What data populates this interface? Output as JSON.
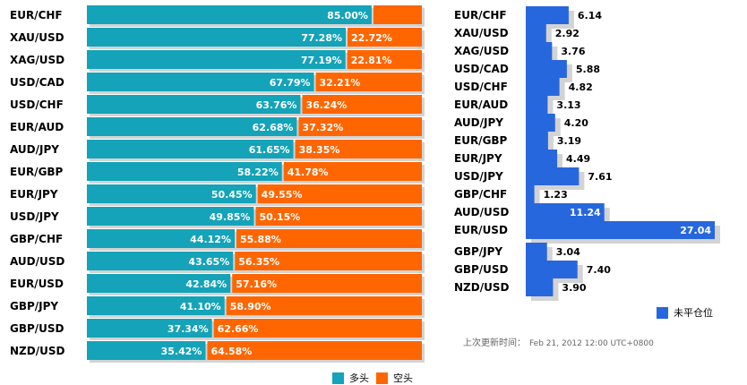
{
  "colors": {
    "long": "#14a3b8",
    "short": "#ff6600",
    "position": "#2767de",
    "shadow": "#d3d3d3"
  },
  "legend": {
    "long_label": "多头",
    "short_label": "空头",
    "position_label": "未平仓位"
  },
  "update": {
    "label": "上次更新时间：",
    "timestamp": "Feb 21, 2012 12:00 UTC+0800"
  },
  "chart_data": [
    {
      "type": "bar",
      "orientation": "horizontal",
      "stacked": true,
      "title": "",
      "categories": [
        "EUR/CHF",
        "XAU/USD",
        "XAG/USD",
        "USD/CAD",
        "USD/CHF",
        "EUR/AUD",
        "AUD/JPY",
        "EUR/GBP",
        "EUR/JPY",
        "USD/JPY",
        "GBP/CHF",
        "AUD/USD",
        "EUR/USD",
        "GBP/JPY",
        "GBP/USD",
        "NZD/USD"
      ],
      "series": [
        {
          "name": "多头",
          "values": [
            85.0,
            77.28,
            77.19,
            67.79,
            63.76,
            62.68,
            61.65,
            58.22,
            50.45,
            49.85,
            44.12,
            43.65,
            42.84,
            41.1,
            37.34,
            35.42
          ],
          "labels": [
            "85.00%",
            "77.28%",
            "77.19%",
            "67.79%",
            "63.76%",
            "62.68%",
            "61.65%",
            "58.22%",
            "50.45%",
            "49.85%",
            "44.12%",
            "43.65%",
            "42.84%",
            "41.10%",
            "37.34%",
            "35.42%"
          ]
        },
        {
          "name": "空头",
          "values": [
            15.0,
            22.72,
            22.81,
            32.21,
            36.24,
            37.32,
            38.35,
            41.78,
            49.55,
            50.15,
            55.88,
            56.35,
            57.16,
            58.9,
            62.66,
            64.58
          ],
          "labels": [
            "",
            "22.72%",
            "22.81%",
            "32.21%",
            "36.24%",
            "37.32%",
            "38.35%",
            "41.78%",
            "49.55%",
            "50.15%",
            "55.88%",
            "56.35%",
            "57.16%",
            "58.90%",
            "62.66%",
            "64.58%"
          ]
        }
      ],
      "xlim": [
        0,
        100
      ]
    },
    {
      "type": "bar",
      "orientation": "horizontal",
      "title": "",
      "categories": [
        "EUR/CHF",
        "XAU/USD",
        "XAG/USD",
        "USD/CAD",
        "USD/CHF",
        "EUR/AUD",
        "AUD/JPY",
        "EUR/GBP",
        "EUR/JPY",
        "USD/JPY",
        "GBP/CHF",
        "AUD/USD",
        "EUR/USD",
        "GBP/JPY",
        "GBP/USD",
        "NZD/USD"
      ],
      "values": [
        6.14,
        2.92,
        3.76,
        5.88,
        4.82,
        3.13,
        4.2,
        3.19,
        4.49,
        7.61,
        1.23,
        11.24,
        27.04,
        3.04,
        7.4,
        3.9
      ],
      "labels": [
        "6.14",
        "2.92",
        "3.76",
        "5.88",
        "4.82",
        "3.13",
        "4.20",
        "3.19",
        "4.49",
        "7.61",
        "1.23",
        "11.24",
        "27.04",
        "3.04",
        "7.40",
        "3.90"
      ],
      "series_name": "未平仓位",
      "xlim": [
        0,
        27.04
      ]
    }
  ]
}
